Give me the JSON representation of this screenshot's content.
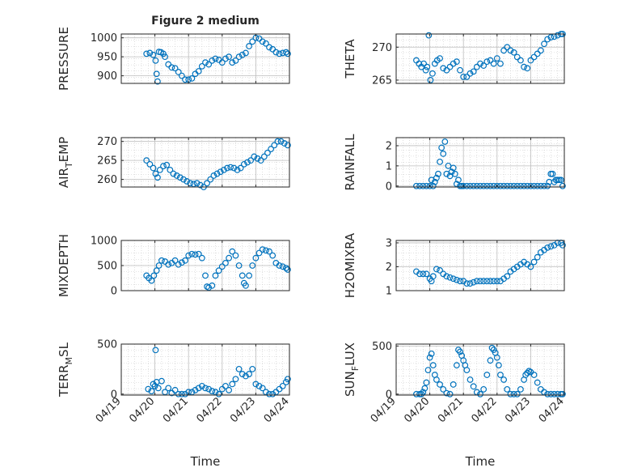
{
  "figure": {
    "title": "Figure 2 medium",
    "colors": {
      "marker": "#0072BD",
      "axis": "#262626",
      "grid": "#c8c8c8",
      "background": "#ffffff"
    }
  },
  "chart_data": [
    {
      "type": "scatter",
      "panel": "top-left",
      "ylabel": "PRESSURE",
      "ylim": [
        880,
        1010
      ],
      "yticks": [
        900,
        950,
        1000
      ],
      "xlim": [
        0,
        5
      ],
      "xticks": [],
      "x": [
        0.75,
        0.85,
        0.95,
        1.02,
        1.05,
        1.08,
        1.12,
        1.18,
        1.25,
        1.3,
        1.4,
        1.5,
        1.6,
        1.7,
        1.8,
        1.9,
        2.0,
        2.1,
        2.2,
        2.3,
        2.4,
        2.5,
        2.6,
        2.7,
        2.8,
        2.9,
        3.0,
        3.1,
        3.2,
        3.3,
        3.4,
        3.5,
        3.6,
        3.7,
        3.8,
        3.9,
        4.0,
        4.1,
        4.2,
        4.3,
        4.4,
        4.5,
        4.6,
        4.7,
        4.8,
        4.9,
        4.95
      ],
      "values": [
        958,
        960,
        955,
        940,
        905,
        885,
        963,
        962,
        958,
        950,
        930,
        922,
        920,
        910,
        900,
        890,
        890,
        893,
        905,
        912,
        925,
        935,
        930,
        940,
        945,
        942,
        935,
        945,
        950,
        935,
        940,
        950,
        955,
        960,
        978,
        990,
        1000,
        998,
        990,
        985,
        975,
        970,
        962,
        958,
        960,
        962,
        958
      ]
    },
    {
      "type": "scatter",
      "panel": "top-right",
      "ylabel": "THETA",
      "ylim": [
        264.5,
        272
      ],
      "yticks": [
        265,
        270
      ],
      "xlim": [
        0,
        5
      ],
      "xticks": [],
      "x": [
        0.6,
        0.68,
        0.75,
        0.82,
        0.88,
        0.92,
        0.97,
        1.02,
        1.08,
        1.15,
        1.22,
        1.3,
        1.4,
        1.5,
        1.6,
        1.7,
        1.8,
        1.9,
        2.0,
        2.1,
        2.2,
        2.3,
        2.4,
        2.5,
        2.6,
        2.7,
        2.8,
        2.9,
        3.0,
        3.1,
        3.2,
        3.3,
        3.4,
        3.5,
        3.6,
        3.7,
        3.8,
        3.9,
        4.0,
        4.1,
        4.2,
        4.3,
        4.4,
        4.5,
        4.6,
        4.7,
        4.8,
        4.9,
        4.95
      ],
      "values": [
        268,
        267.5,
        267,
        267.5,
        266.5,
        267,
        271.8,
        265,
        266,
        267.5,
        268,
        268.3,
        266.8,
        266.5,
        267,
        267.5,
        267.8,
        266.5,
        265.5,
        265.5,
        266,
        266.3,
        267,
        267.5,
        267.2,
        267.8,
        268,
        267.5,
        268.3,
        267.5,
        269.5,
        270,
        269.5,
        269.2,
        268.5,
        268,
        267,
        266.8,
        268,
        268.5,
        269,
        269.5,
        270.5,
        271.2,
        271.5,
        271.6,
        271.8,
        272,
        272
      ]
    },
    {
      "type": "scatter",
      "panel": "second-left",
      "ylabel": "AIR_TEMP",
      "ylim": [
        258,
        271
      ],
      "yticks": [
        260,
        265,
        270
      ],
      "xlim": [
        0,
        5
      ],
      "xticks": [],
      "x": [
        0.75,
        0.85,
        0.95,
        1.02,
        1.08,
        1.15,
        1.25,
        1.35,
        1.45,
        1.55,
        1.65,
        1.75,
        1.85,
        1.95,
        2.05,
        2.15,
        2.25,
        2.35,
        2.45,
        2.55,
        2.65,
        2.75,
        2.85,
        2.95,
        3.05,
        3.15,
        3.25,
        3.35,
        3.45,
        3.55,
        3.65,
        3.75,
        3.85,
        3.95,
        4.05,
        4.15,
        4.25,
        4.35,
        4.45,
        4.55,
        4.65,
        4.75,
        4.85,
        4.95
      ],
      "values": [
        265,
        264,
        263,
        261.5,
        260.5,
        262.5,
        263.5,
        263.8,
        262.5,
        261.5,
        261,
        260.5,
        260,
        259.5,
        259,
        258.8,
        259,
        258.5,
        258,
        259,
        260,
        261,
        261.5,
        262,
        262.5,
        263,
        263.2,
        263,
        262.5,
        263,
        264,
        264.5,
        265,
        266,
        265.5,
        265,
        266,
        267,
        268,
        269,
        270,
        270,
        269.5,
        269
      ]
    },
    {
      "type": "scatter",
      "panel": "second-right",
      "ylabel": "RAINFALL",
      "ylim": [
        -0.05,
        2.4
      ],
      "yticks": [
        0,
        1,
        2
      ],
      "xlim": [
        0,
        5
      ],
      "xticks": [],
      "x": [
        0.6,
        0.7,
        0.8,
        0.9,
        1.0,
        1.05,
        1.1,
        1.15,
        1.2,
        1.25,
        1.3,
        1.35,
        1.4,
        1.45,
        1.5,
        1.55,
        1.6,
        1.65,
        1.7,
        1.75,
        1.8,
        1.85,
        1.9,
        1.95,
        2.0,
        2.1,
        2.2,
        2.3,
        2.4,
        2.5,
        2.6,
        2.7,
        2.8,
        2.9,
        3.0,
        3.1,
        3.2,
        3.3,
        3.4,
        3.5,
        3.6,
        3.7,
        3.8,
        3.9,
        4.0,
        4.1,
        4.2,
        4.3,
        4.4,
        4.5,
        4.55,
        4.6,
        4.65,
        4.7,
        4.75,
        4.8,
        4.85,
        4.9,
        4.95
      ],
      "values": [
        0,
        0,
        0,
        0,
        0,
        0.3,
        0,
        0.2,
        0.4,
        0.6,
        1.2,
        1.9,
        1.6,
        2.2,
        0.6,
        1.0,
        0.5,
        0.7,
        0.9,
        0.6,
        0.1,
        0.3,
        0,
        0,
        0,
        0,
        0,
        0,
        0,
        0,
        0,
        0,
        0,
        0,
        0,
        0,
        0,
        0,
        0,
        0,
        0,
        0,
        0,
        0,
        0,
        0,
        0,
        0,
        0,
        0,
        0.2,
        0.6,
        0.6,
        0.2,
        0.3,
        0.3,
        0.3,
        0.3,
        0
      ]
    },
    {
      "type": "scatter",
      "panel": "third-left",
      "ylabel": "MIXDEPTH",
      "ylim": [
        0,
        1000
      ],
      "yticks": [
        0,
        500,
        1000
      ],
      "xlim": [
        0,
        5
      ],
      "xticks": [],
      "x": [
        0.75,
        0.82,
        0.9,
        0.97,
        1.05,
        1.12,
        1.2,
        1.3,
        1.4,
        1.5,
        1.6,
        1.7,
        1.8,
        1.9,
        2.0,
        2.1,
        2.2,
        2.3,
        2.4,
        2.5,
        2.55,
        2.6,
        2.7,
        2.8,
        2.9,
        3.0,
        3.1,
        3.2,
        3.3,
        3.4,
        3.5,
        3.6,
        3.65,
        3.7,
        3.8,
        3.9,
        4.0,
        4.1,
        4.2,
        4.3,
        4.4,
        4.5,
        4.6,
        4.7,
        4.8,
        4.9,
        4.95
      ],
      "values": [
        300,
        250,
        200,
        300,
        400,
        500,
        600,
        580,
        520,
        550,
        600,
        520,
        560,
        600,
        700,
        730,
        720,
        730,
        650,
        300,
        80,
        60,
        100,
        300,
        400,
        480,
        550,
        650,
        780,
        700,
        500,
        300,
        150,
        100,
        300,
        500,
        650,
        750,
        820,
        800,
        780,
        700,
        550,
        500,
        480,
        450,
        420
      ]
    },
    {
      "type": "scatter",
      "panel": "third-right",
      "ylabel": "H2OMIXRA",
      "ylim": [
        1,
        3.1
      ],
      "yticks": [
        1,
        2,
        3
      ],
      "xlim": [
        0,
        5
      ],
      "xticks": [],
      "x": [
        0.6,
        0.7,
        0.8,
        0.9,
        1.0,
        1.05,
        1.1,
        1.2,
        1.3,
        1.4,
        1.5,
        1.6,
        1.7,
        1.8,
        1.9,
        2.0,
        2.1,
        2.2,
        2.3,
        2.4,
        2.5,
        2.6,
        2.7,
        2.8,
        2.9,
        3.0,
        3.1,
        3.2,
        3.3,
        3.4,
        3.5,
        3.6,
        3.7,
        3.8,
        3.9,
        4.0,
        4.1,
        4.2,
        4.3,
        4.4,
        4.5,
        4.6,
        4.7,
        4.8,
        4.9,
        4.95
      ],
      "values": [
        1.8,
        1.7,
        1.7,
        1.7,
        1.5,
        1.4,
        1.6,
        1.9,
        1.85,
        1.7,
        1.6,
        1.55,
        1.5,
        1.45,
        1.4,
        1.4,
        1.3,
        1.3,
        1.35,
        1.4,
        1.4,
        1.4,
        1.4,
        1.4,
        1.4,
        1.4,
        1.4,
        1.5,
        1.6,
        1.8,
        1.9,
        2.0,
        2.1,
        2.2,
        2.1,
        2.0,
        2.2,
        2.4,
        2.6,
        2.7,
        2.8,
        2.85,
        2.9,
        3.0,
        3.0,
        2.9
      ]
    },
    {
      "type": "scatter",
      "panel": "bottom-left",
      "ylabel": "TERR_MSL",
      "ylim": [
        -10,
        500
      ],
      "yticks": [
        0,
        500
      ],
      "xlim": [
        0,
        5
      ],
      "xticks": [
        "04/19",
        "04/20",
        "04/21",
        "04/22",
        "04/23",
        "04/24"
      ],
      "xlabel": "Time",
      "x": [
        0.8,
        0.9,
        0.95,
        1.0,
        1.02,
        1.05,
        1.1,
        1.2,
        1.3,
        1.4,
        1.5,
        1.6,
        1.7,
        1.8,
        1.9,
        2.0,
        2.1,
        2.2,
        2.3,
        2.4,
        2.5,
        2.6,
        2.7,
        2.8,
        2.9,
        3.0,
        3.1,
        3.2,
        3.3,
        3.4,
        3.5,
        3.6,
        3.7,
        3.8,
        3.9,
        4.0,
        4.1,
        4.2,
        4.3,
        4.4,
        4.5,
        4.6,
        4.7,
        4.8,
        4.9,
        4.95
      ],
      "values": [
        50,
        30,
        100,
        80,
        440,
        120,
        60,
        130,
        20,
        60,
        10,
        40,
        0,
        0,
        0,
        20,
        20,
        40,
        60,
        80,
        60,
        50,
        30,
        20,
        0,
        50,
        80,
        40,
        100,
        150,
        250,
        200,
        180,
        200,
        250,
        100,
        80,
        60,
        20,
        0,
        0,
        20,
        50,
        80,
        120,
        150
      ]
    },
    {
      "type": "scatter",
      "panel": "bottom-right",
      "ylabel": "SUN_FLUX",
      "ylim": [
        -10,
        520
      ],
      "yticks": [
        0,
        500
      ],
      "xlim": [
        0,
        5
      ],
      "xticks": [
        "04/19",
        "04/20",
        "04/21",
        "04/22",
        "04/23",
        "04/24"
      ],
      "xlabel": "Time",
      "x": [
        0.6,
        0.7,
        0.75,
        0.8,
        0.85,
        0.9,
        0.95,
        1.0,
        1.05,
        1.1,
        1.15,
        1.2,
        1.3,
        1.4,
        1.5,
        1.6,
        1.7,
        1.8,
        1.85,
        1.9,
        1.95,
        2.0,
        2.05,
        2.1,
        2.2,
        2.3,
        2.4,
        2.5,
        2.6,
        2.7,
        2.8,
        2.85,
        2.9,
        2.95,
        3.0,
        3.05,
        3.1,
        3.2,
        3.3,
        3.4,
        3.5,
        3.6,
        3.7,
        3.8,
        3.85,
        3.9,
        3.95,
        4.0,
        4.1,
        4.2,
        4.3,
        4.4,
        4.5,
        4.6,
        4.7,
        4.8,
        4.9,
        4.95
      ],
      "values": [
        0,
        0,
        0,
        20,
        60,
        120,
        250,
        380,
        420,
        300,
        200,
        150,
        100,
        50,
        10,
        0,
        100,
        300,
        460,
        440,
        400,
        350,
        300,
        250,
        150,
        80,
        20,
        0,
        50,
        200,
        350,
        480,
        460,
        430,
        380,
        300,
        200,
        150,
        50,
        0,
        0,
        0,
        50,
        150,
        200,
        220,
        240,
        230,
        200,
        120,
        50,
        20,
        0,
        0,
        0,
        0,
        0,
        0
      ]
    }
  ]
}
